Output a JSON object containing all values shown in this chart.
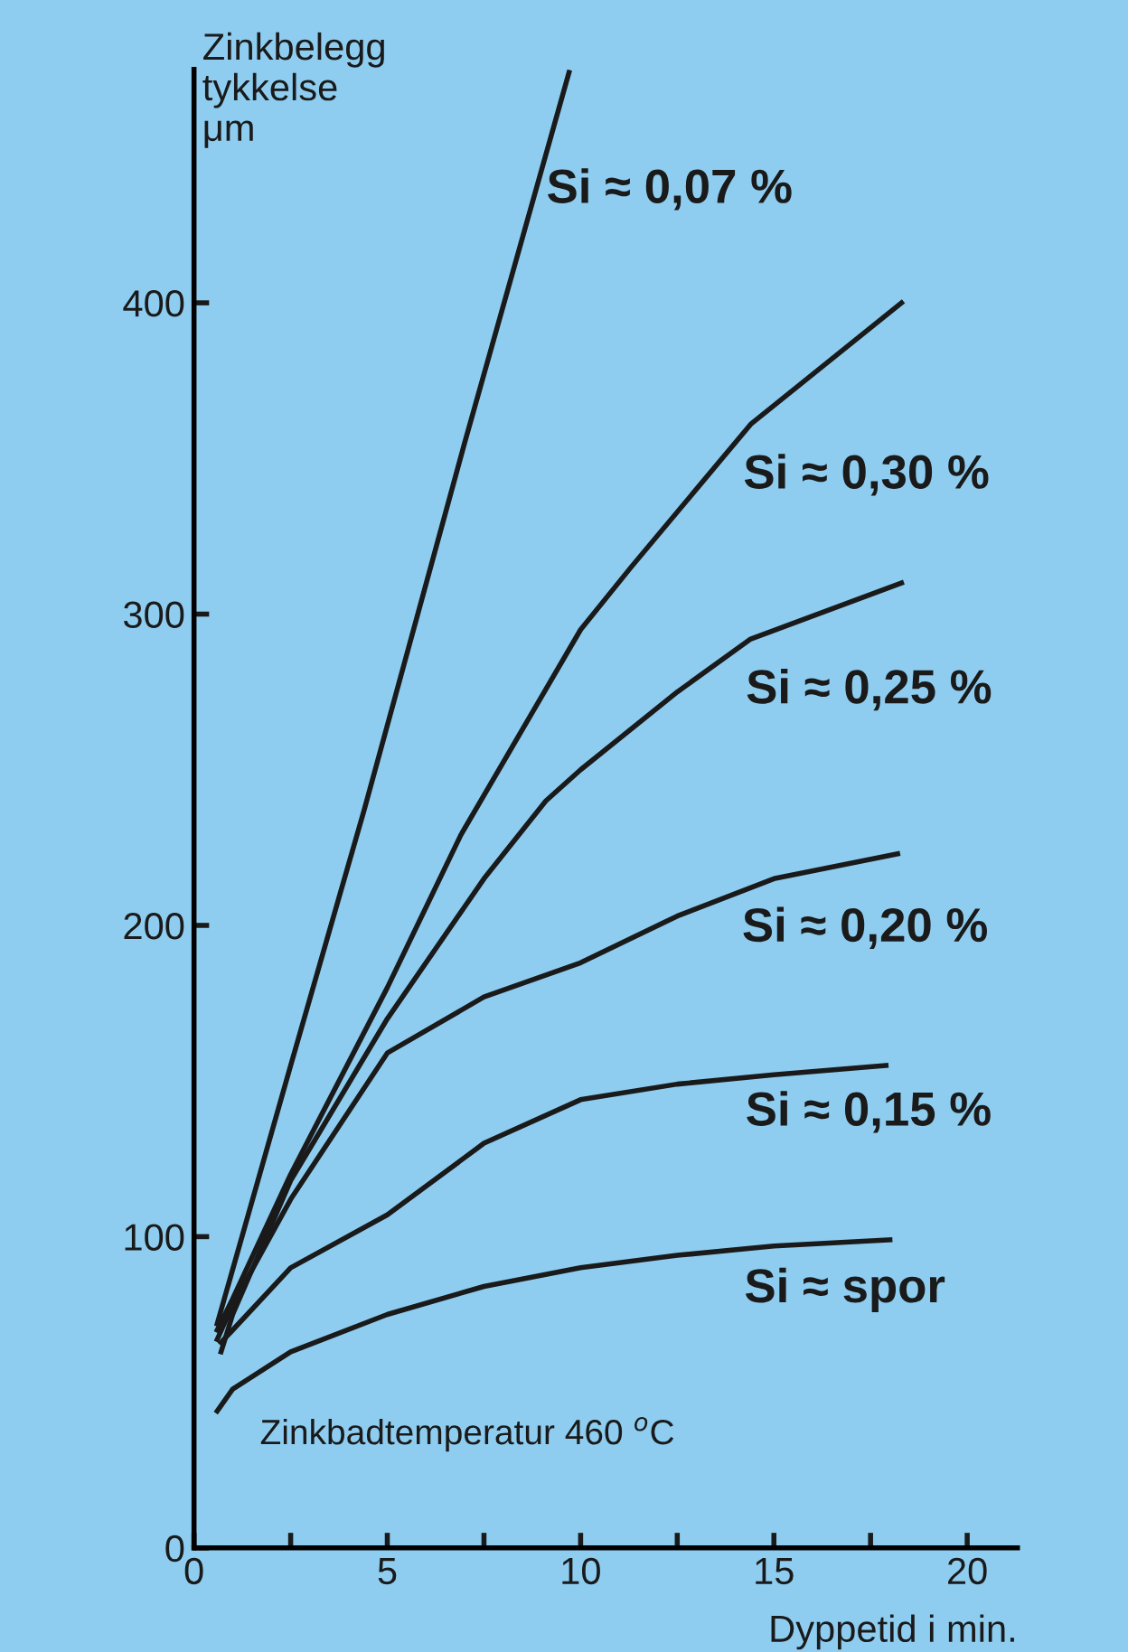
{
  "chart_data": {
    "type": "line",
    "xlabel": "Dyppetid i min.",
    "ylabel": "Zinkbelegg\ntykkelse\nμm",
    "xlim": [
      0,
      21.3
    ],
    "ylim": [
      0,
      475
    ],
    "xticks": [
      0,
      {
        "value": 2.5,
        "label": null
      },
      5,
      {
        "value": 7.5,
        "label": null
      },
      10,
      {
        "value": 12.5,
        "label": null
      },
      15,
      {
        "value": 17.5,
        "label": null
      },
      20
    ],
    "yticks": [
      0,
      100,
      200,
      300,
      400
    ],
    "grid": false,
    "legend": false,
    "marker": "none",
    "line_style": "solid",
    "annotations": [
      "Zinkbadtemperatur 460 $^{o}$C"
    ],
    "series": [
      {
        "name": "Si ≈ 0,07 %",
        "color": "#1a1a1a",
        "x": [
          0.6,
          2.5,
          4.4,
          7,
          9.7
        ],
        "values": [
          72,
          155,
          237,
          355,
          474
        ]
      },
      {
        "name": "Si ≈ 0,30 %",
        "color": "#1a1a1a",
        "x": [
          0.6,
          1,
          2.5,
          5,
          6.9,
          10,
          11.3,
          14.4,
          18.3
        ],
        "values": [
          70,
          80,
          120,
          180,
          229,
          295,
          315,
          361,
          400
        ]
      },
      {
        "name": "Si ≈ 0,25 %",
        "color": "#1a1a1a",
        "x": [
          0.7,
          1,
          2.5,
          5,
          7.5,
          9.1,
          10,
          12.5,
          14.4,
          18.3
        ],
        "values": [
          63,
          75,
          118,
          170,
          215,
          240,
          250,
          275,
          292,
          310
        ]
      },
      {
        "name": "Si ≈ 0,20 %",
        "color": "#1a1a1a",
        "x": [
          0.6,
          1,
          2.5,
          5,
          7.5,
          10,
          12.5,
          15,
          18.2
        ],
        "values": [
          67,
          78,
          112,
          159,
          177,
          188,
          203,
          215,
          223
        ]
      },
      {
        "name": "Si ≈ 0,15 %",
        "color": "#1a1a1a",
        "x": [
          0.7,
          1,
          2.5,
          5,
          7.5,
          10,
          12.5,
          15,
          17.9
        ],
        "values": [
          66,
          70,
          90,
          107,
          130,
          144,
          149,
          152,
          155
        ]
      },
      {
        "name": "Si ≈ spor",
        "color": "#1a1a1a",
        "x": [
          0.6,
          1,
          2.5,
          5,
          7.5,
          10,
          12.5,
          15,
          18
        ],
        "values": [
          44,
          51,
          63,
          75,
          84,
          90,
          94,
          97,
          99
        ]
      }
    ]
  }
}
